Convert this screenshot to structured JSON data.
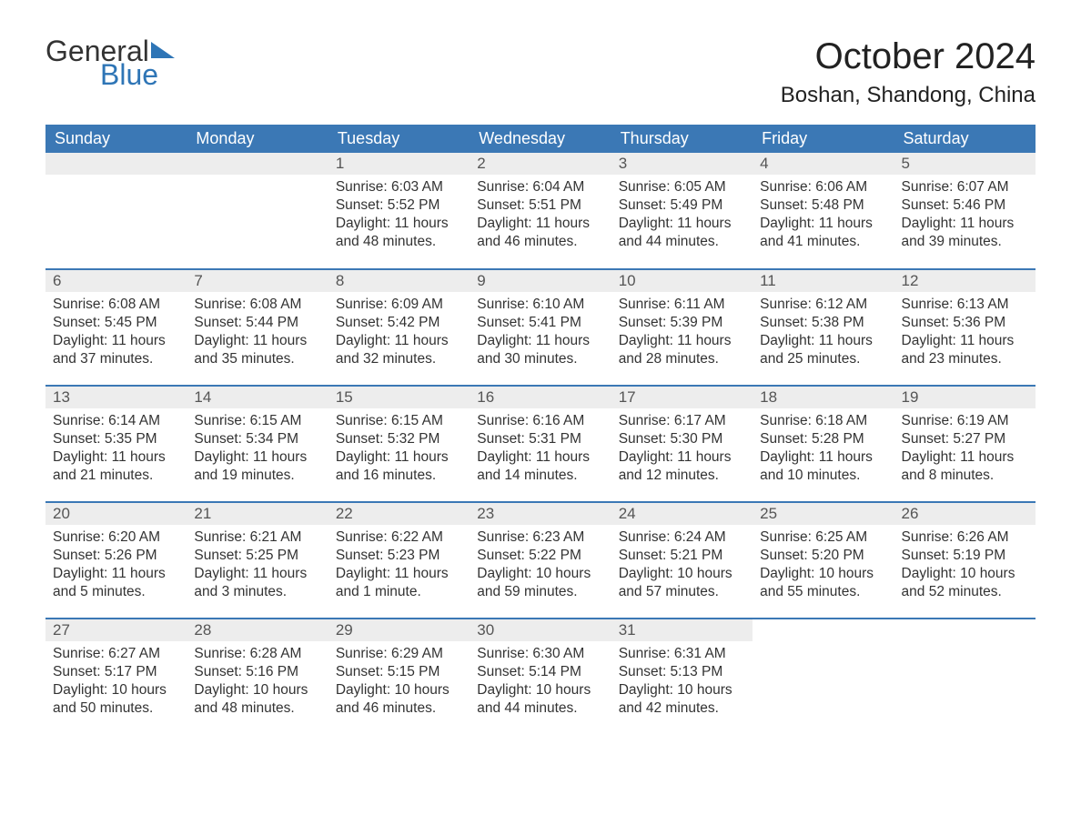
{
  "brand": {
    "word1": "General",
    "word2": "Blue",
    "accent": "#2e75b6"
  },
  "title": "October 2024",
  "location": "Boshan, Shandong, China",
  "colors": {
    "header_bg": "#3b78b5",
    "header_text": "#ffffff",
    "daynum_bg": "#ededed",
    "border": "#3b78b5",
    "body_text": "#333333",
    "page_bg": "#ffffff"
  },
  "weekdays": [
    "Sunday",
    "Monday",
    "Tuesday",
    "Wednesday",
    "Thursday",
    "Friday",
    "Saturday"
  ],
  "weeks": [
    [
      null,
      null,
      {
        "n": "1",
        "sr": "Sunrise: 6:03 AM",
        "ss": "Sunset: 5:52 PM",
        "d1": "Daylight: 11 hours",
        "d2": "and 48 minutes."
      },
      {
        "n": "2",
        "sr": "Sunrise: 6:04 AM",
        "ss": "Sunset: 5:51 PM",
        "d1": "Daylight: 11 hours",
        "d2": "and 46 minutes."
      },
      {
        "n": "3",
        "sr": "Sunrise: 6:05 AM",
        "ss": "Sunset: 5:49 PM",
        "d1": "Daylight: 11 hours",
        "d2": "and 44 minutes."
      },
      {
        "n": "4",
        "sr": "Sunrise: 6:06 AM",
        "ss": "Sunset: 5:48 PM",
        "d1": "Daylight: 11 hours",
        "d2": "and 41 minutes."
      },
      {
        "n": "5",
        "sr": "Sunrise: 6:07 AM",
        "ss": "Sunset: 5:46 PM",
        "d1": "Daylight: 11 hours",
        "d2": "and 39 minutes."
      }
    ],
    [
      {
        "n": "6",
        "sr": "Sunrise: 6:08 AM",
        "ss": "Sunset: 5:45 PM",
        "d1": "Daylight: 11 hours",
        "d2": "and 37 minutes."
      },
      {
        "n": "7",
        "sr": "Sunrise: 6:08 AM",
        "ss": "Sunset: 5:44 PM",
        "d1": "Daylight: 11 hours",
        "d2": "and 35 minutes."
      },
      {
        "n": "8",
        "sr": "Sunrise: 6:09 AM",
        "ss": "Sunset: 5:42 PM",
        "d1": "Daylight: 11 hours",
        "d2": "and 32 minutes."
      },
      {
        "n": "9",
        "sr": "Sunrise: 6:10 AM",
        "ss": "Sunset: 5:41 PM",
        "d1": "Daylight: 11 hours",
        "d2": "and 30 minutes."
      },
      {
        "n": "10",
        "sr": "Sunrise: 6:11 AM",
        "ss": "Sunset: 5:39 PM",
        "d1": "Daylight: 11 hours",
        "d2": "and 28 minutes."
      },
      {
        "n": "11",
        "sr": "Sunrise: 6:12 AM",
        "ss": "Sunset: 5:38 PM",
        "d1": "Daylight: 11 hours",
        "d2": "and 25 minutes."
      },
      {
        "n": "12",
        "sr": "Sunrise: 6:13 AM",
        "ss": "Sunset: 5:36 PM",
        "d1": "Daylight: 11 hours",
        "d2": "and 23 minutes."
      }
    ],
    [
      {
        "n": "13",
        "sr": "Sunrise: 6:14 AM",
        "ss": "Sunset: 5:35 PM",
        "d1": "Daylight: 11 hours",
        "d2": "and 21 minutes."
      },
      {
        "n": "14",
        "sr": "Sunrise: 6:15 AM",
        "ss": "Sunset: 5:34 PM",
        "d1": "Daylight: 11 hours",
        "d2": "and 19 minutes."
      },
      {
        "n": "15",
        "sr": "Sunrise: 6:15 AM",
        "ss": "Sunset: 5:32 PM",
        "d1": "Daylight: 11 hours",
        "d2": "and 16 minutes."
      },
      {
        "n": "16",
        "sr": "Sunrise: 6:16 AM",
        "ss": "Sunset: 5:31 PM",
        "d1": "Daylight: 11 hours",
        "d2": "and 14 minutes."
      },
      {
        "n": "17",
        "sr": "Sunrise: 6:17 AM",
        "ss": "Sunset: 5:30 PM",
        "d1": "Daylight: 11 hours",
        "d2": "and 12 minutes."
      },
      {
        "n": "18",
        "sr": "Sunrise: 6:18 AM",
        "ss": "Sunset: 5:28 PM",
        "d1": "Daylight: 11 hours",
        "d2": "and 10 minutes."
      },
      {
        "n": "19",
        "sr": "Sunrise: 6:19 AM",
        "ss": "Sunset: 5:27 PM",
        "d1": "Daylight: 11 hours",
        "d2": "and 8 minutes."
      }
    ],
    [
      {
        "n": "20",
        "sr": "Sunrise: 6:20 AM",
        "ss": "Sunset: 5:26 PM",
        "d1": "Daylight: 11 hours",
        "d2": "and 5 minutes."
      },
      {
        "n": "21",
        "sr": "Sunrise: 6:21 AM",
        "ss": "Sunset: 5:25 PM",
        "d1": "Daylight: 11 hours",
        "d2": "and 3 minutes."
      },
      {
        "n": "22",
        "sr": "Sunrise: 6:22 AM",
        "ss": "Sunset: 5:23 PM",
        "d1": "Daylight: 11 hours",
        "d2": "and 1 minute."
      },
      {
        "n": "23",
        "sr": "Sunrise: 6:23 AM",
        "ss": "Sunset: 5:22 PM",
        "d1": "Daylight: 10 hours",
        "d2": "and 59 minutes."
      },
      {
        "n": "24",
        "sr": "Sunrise: 6:24 AM",
        "ss": "Sunset: 5:21 PM",
        "d1": "Daylight: 10 hours",
        "d2": "and 57 minutes."
      },
      {
        "n": "25",
        "sr": "Sunrise: 6:25 AM",
        "ss": "Sunset: 5:20 PM",
        "d1": "Daylight: 10 hours",
        "d2": "and 55 minutes."
      },
      {
        "n": "26",
        "sr": "Sunrise: 6:26 AM",
        "ss": "Sunset: 5:19 PM",
        "d1": "Daylight: 10 hours",
        "d2": "and 52 minutes."
      }
    ],
    [
      {
        "n": "27",
        "sr": "Sunrise: 6:27 AM",
        "ss": "Sunset: 5:17 PM",
        "d1": "Daylight: 10 hours",
        "d2": "and 50 minutes."
      },
      {
        "n": "28",
        "sr": "Sunrise: 6:28 AM",
        "ss": "Sunset: 5:16 PM",
        "d1": "Daylight: 10 hours",
        "d2": "and 48 minutes."
      },
      {
        "n": "29",
        "sr": "Sunrise: 6:29 AM",
        "ss": "Sunset: 5:15 PM",
        "d1": "Daylight: 10 hours",
        "d2": "and 46 minutes."
      },
      {
        "n": "30",
        "sr": "Sunrise: 6:30 AM",
        "ss": "Sunset: 5:14 PM",
        "d1": "Daylight: 10 hours",
        "d2": "and 44 minutes."
      },
      {
        "n": "31",
        "sr": "Sunrise: 6:31 AM",
        "ss": "Sunset: 5:13 PM",
        "d1": "Daylight: 10 hours",
        "d2": "and 42 minutes."
      },
      null,
      null
    ]
  ]
}
